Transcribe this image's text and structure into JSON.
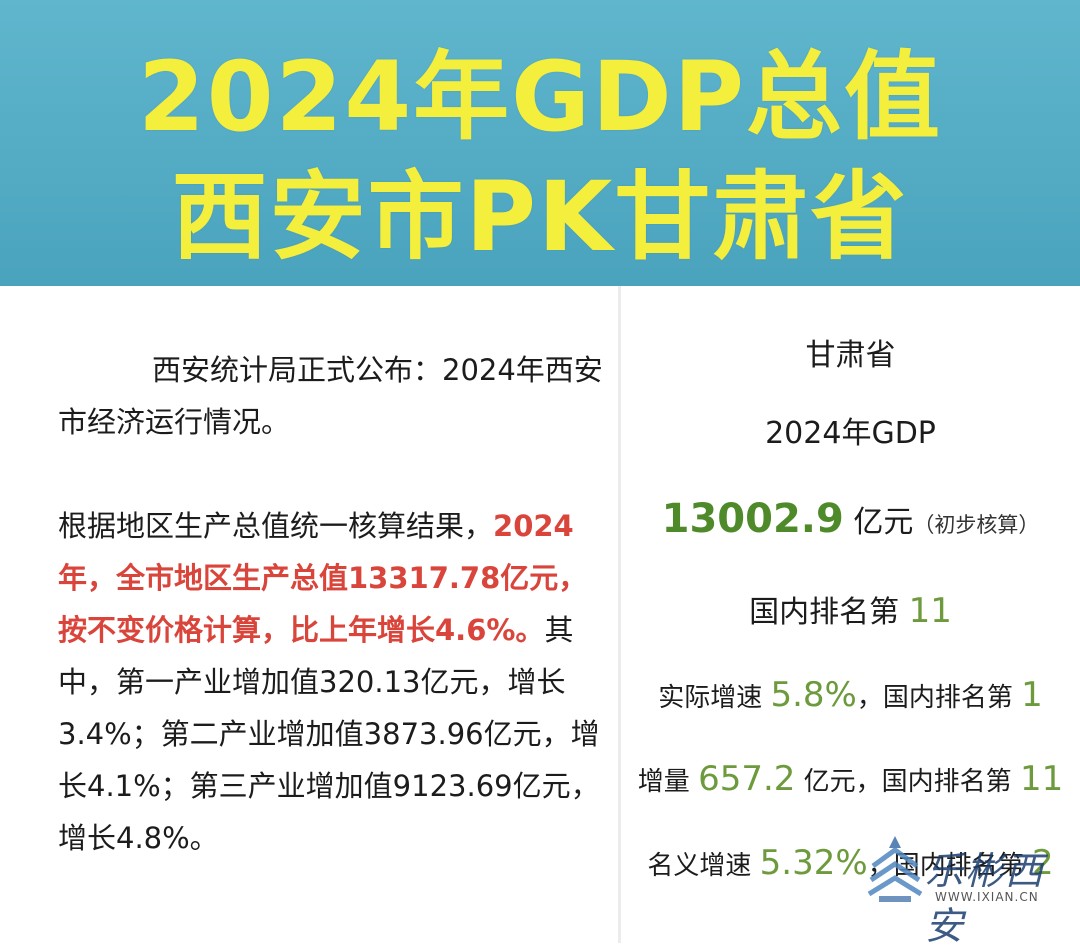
{
  "header": {
    "title_line1": "2024年GDP总值",
    "title_line2": "西安市PK甘肃省"
  },
  "left": {
    "para1": "西安统计局正式公布：2024年西安市经济运行情况。",
    "para2_intro": "根据地区生产总值统一核算结果，",
    "para2_highlight": "2024年，全市地区生产总值13317.78亿元，按不变价格计算，比上年增长4.6%。",
    "para2_rest": "其中，第一产业增加值320.13亿元，增长3.4%；第二产业增加值3873.96亿元，增长4.1%；第三产业增加值9123.69亿元，增长4.8%。"
  },
  "right": {
    "name": "甘肃省",
    "year_label": "2024年GDP",
    "gdp_value": "13002.9",
    "gdp_unit": "亿元",
    "gdp_note": "（初步核算）",
    "rank_label": "国内排名第",
    "rank_value": "11",
    "speed_label": "实际增速",
    "speed_value": "5.8%",
    "speed_rank_label": "，国内排名第",
    "speed_rank_value": "1",
    "inc_label": "增量",
    "inc_value": "657.2",
    "inc_unit": "亿元，国内排名第",
    "inc_rank_value": "11",
    "nominal_label": "名义增速",
    "nominal_value": "5.32%",
    "nominal_rank_label": "，国内排名第",
    "nominal_rank_value": "2"
  },
  "watermark": {
    "text": "乐彬西安",
    "url": "WWW.IXIAN.CN"
  },
  "colors": {
    "banner": "#4aa3bd",
    "title": "#f4ee3c",
    "highlight_red": "#d9453b",
    "green": "#4f8a2a"
  }
}
